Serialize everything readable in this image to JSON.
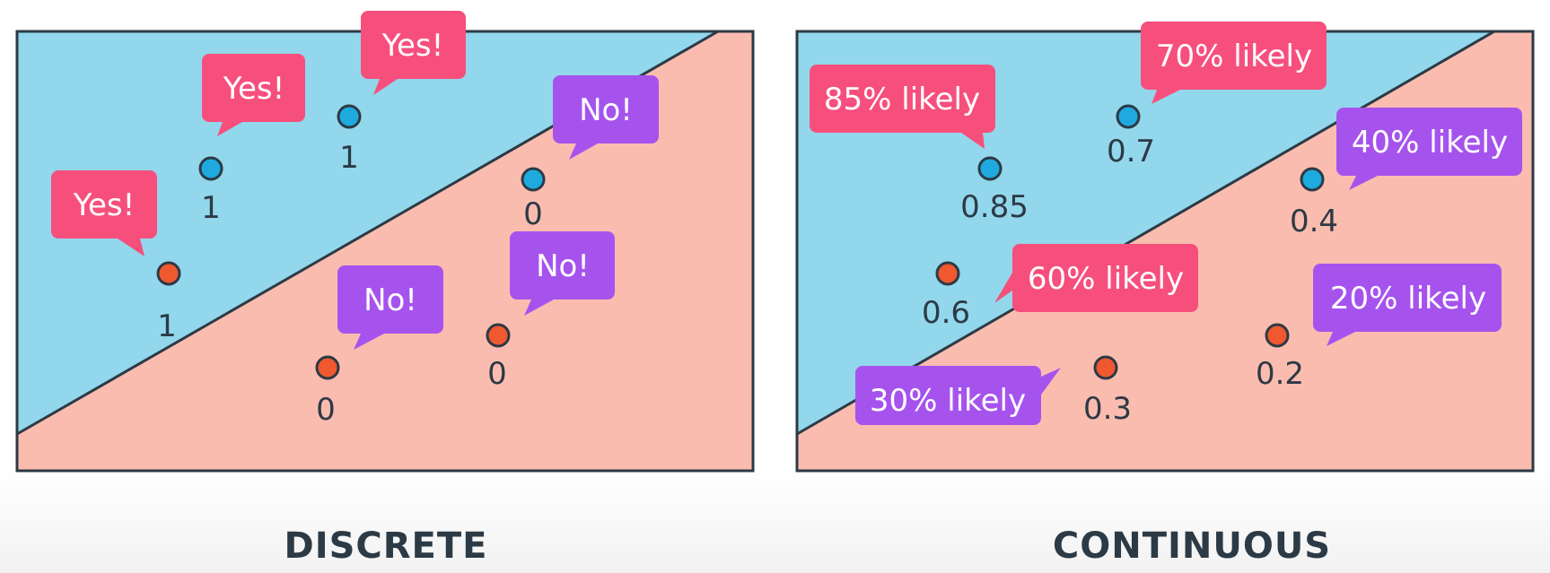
{
  "colors": {
    "blue_region": "#92d7ec",
    "salmon_region": "#fbbcb0",
    "border": "#2c3a45",
    "blue_point": "#1eaadf",
    "red_point": "#f0582f",
    "pink_bubble": "#f74f7c",
    "purple_bubble": "#a653ee"
  },
  "panels": [
    {
      "caption": "DISCRETE",
      "points": [
        {
          "class": "blue",
          "label": "1",
          "bubble": "Yes!",
          "bubble_color": "pink"
        },
        {
          "class": "blue",
          "label": "1",
          "bubble": "Yes!",
          "bubble_color": "pink"
        },
        {
          "class": "red",
          "label": "1",
          "bubble": "Yes!",
          "bubble_color": "pink"
        },
        {
          "class": "blue",
          "label": "0",
          "bubble": "No!",
          "bubble_color": "purple"
        },
        {
          "class": "red",
          "label": "0",
          "bubble": "No!",
          "bubble_color": "purple"
        },
        {
          "class": "red",
          "label": "0",
          "bubble": "No!",
          "bubble_color": "purple"
        }
      ]
    },
    {
      "caption": "CONTINUOUS",
      "points": [
        {
          "class": "blue",
          "label": "0.85",
          "bubble": "85% likely",
          "bubble_color": "pink"
        },
        {
          "class": "blue",
          "label": "0.7",
          "bubble": "70% likely",
          "bubble_color": "pink"
        },
        {
          "class": "blue",
          "label": "0.4",
          "bubble": "40% likely",
          "bubble_color": "purple"
        },
        {
          "class": "red",
          "label": "0.6",
          "bubble": "60% likely",
          "bubble_color": "pink"
        },
        {
          "class": "red",
          "label": "0.2",
          "bubble": "20% likely",
          "bubble_color": "purple"
        },
        {
          "class": "red",
          "label": "0.3",
          "bubble": "30% likely",
          "bubble_color": "purple"
        }
      ]
    }
  ]
}
